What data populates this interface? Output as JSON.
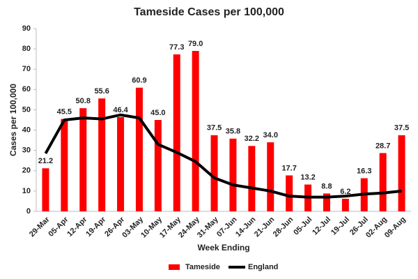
{
  "chart_data": {
    "type": "bar",
    "title": "Tameside Cases per 100,000",
    "x_label": "Week Ending",
    "y_label": "Cases per 100,000",
    "categories": [
      "29-Mar",
      "05-Apr",
      "12-Apr",
      "19-Apr",
      "26-Apr",
      "03-May",
      "10-May",
      "17-May",
      "24-May",
      "31-May",
      "07-Jun",
      "14-Jun",
      "21-Jun",
      "28-Jun",
      "05-Jul",
      "12-Jul",
      "19-Jul",
      "26-Jul",
      "02-Aug",
      "09-Aug"
    ],
    "series": [
      {
        "name": "Tameside",
        "type": "bar",
        "color": "#ff0000",
        "values": [
          21.2,
          45.5,
          50.8,
          55.6,
          46.4,
          60.9,
          45.0,
          77.3,
          79.0,
          37.5,
          35.8,
          32.2,
          34.0,
          17.7,
          13.2,
          8.8,
          6.2,
          16.3,
          28.7,
          37.5
        ],
        "value_labels": [
          "21.2",
          "45.5",
          "50.8",
          "55.6",
          "46.4",
          "60.9",
          "45.0",
          "77.3",
          "79.0",
          "37.5",
          "35.8",
          "32.2",
          "34.0",
          "17.7",
          "13.2",
          "8.8",
          "6.2",
          "16.3",
          "28.7",
          "37.5"
        ]
      },
      {
        "name": "England",
        "type": "line",
        "color": "#000000",
        "values": [
          28.5,
          45,
          46,
          45.5,
          47.5,
          46,
          33,
          29,
          24.5,
          16.5,
          13,
          11.5,
          10,
          7.5,
          7,
          7,
          7.5,
          8.5,
          9,
          10
        ]
      }
    ],
    "ylim": [
      0,
      90
    ],
    "yticks": [
      0,
      10,
      20,
      30,
      40,
      50,
      60,
      70,
      80,
      90
    ],
    "grid": false,
    "legend": "bottom"
  }
}
